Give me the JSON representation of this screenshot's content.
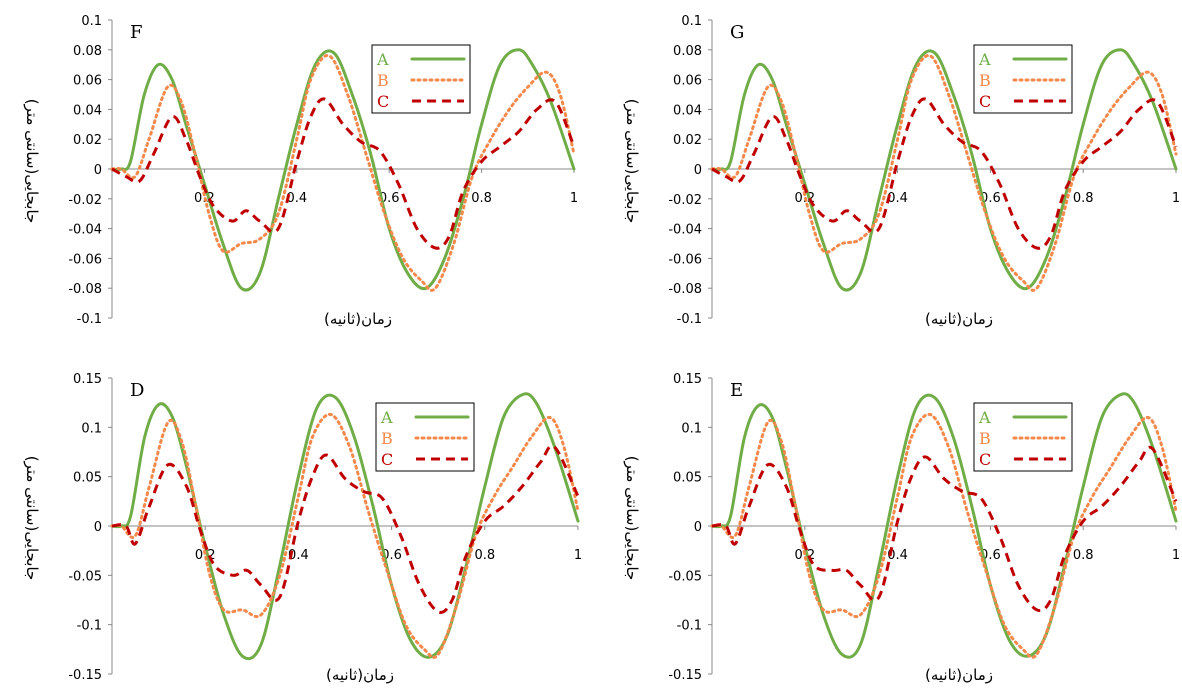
{
  "chart_data": [
    {
      "type": "line",
      "panel_label": "F",
      "xlabel": "زمان(ثانیه)",
      "ylabel": "جابجایی(سانتی متر)",
      "xlim": [
        0,
        1
      ],
      "ylim": [
        -0.1,
        0.1
      ],
      "x_ticks": [
        0.2,
        0.4,
        0.6,
        0.8,
        1
      ],
      "x_tick_labels": [
        "0.2",
        "0.4",
        "0.6",
        "0.8",
        "1"
      ],
      "y_ticks": [
        0.1,
        0.08,
        0.06,
        0.04,
        0.02,
        0,
        -0.02,
        -0.04,
        -0.06,
        -0.08,
        -0.1
      ],
      "y_tick_labels": [
        "0.1",
        "0.08",
        "0.06",
        "0.04",
        "0.02",
        "0",
        "-0.02",
        "-0.04",
        "-0.06",
        "-0.08",
        "-0.1"
      ],
      "legend_position": "top-right",
      "series": [
        {
          "name": "A",
          "color": "#70AD47",
          "style": "solid",
          "x": [
            0,
            0.02,
            0.04,
            0.07,
            0.1,
            0.13,
            0.16,
            0.2,
            0.24,
            0.28,
            0.32,
            0.36,
            0.4,
            0.44,
            0.48,
            0.52,
            0.56,
            0.6,
            0.64,
            0.68,
            0.72,
            0.76,
            0.8,
            0.84,
            0.88,
            0.91,
            0.95,
            1.0
          ],
          "y": [
            0,
            0,
            0.005,
            0.05,
            0.07,
            0.06,
            0.03,
            -0.01,
            -0.05,
            -0.08,
            -0.07,
            -0.02,
            0.03,
            0.07,
            0.078,
            0.05,
            0.01,
            -0.04,
            -0.07,
            -0.08,
            -0.06,
            -0.02,
            0.03,
            0.07,
            0.08,
            0.07,
            0.045,
            0
          ]
        },
        {
          "name": "B",
          "color": "#F4894B",
          "style": "dotted",
          "x": [
            0,
            0.02,
            0.05,
            0.08,
            0.12,
            0.15,
            0.18,
            0.21,
            0.24,
            0.28,
            0.32,
            0.36,
            0.4,
            0.43,
            0.47,
            0.51,
            0.55,
            0.59,
            0.63,
            0.67,
            0.7,
            0.74,
            0.78,
            0.82,
            0.86,
            0.9,
            0.94,
            0.97,
            1.0
          ],
          "y": [
            0,
            0,
            -0.005,
            0.02,
            0.055,
            0.045,
            0.01,
            -0.03,
            -0.055,
            -0.05,
            -0.047,
            -0.03,
            0.02,
            0.06,
            0.076,
            0.05,
            0.01,
            -0.03,
            -0.06,
            -0.075,
            -0.08,
            -0.05,
            -0.005,
            0.02,
            0.04,
            0.055,
            0.065,
            0.05,
            0.01
          ]
        },
        {
          "name": "C",
          "color": "#C00000",
          "style": "dashed",
          "x": [
            0,
            0.03,
            0.06,
            0.09,
            0.13,
            0.16,
            0.19,
            0.22,
            0.26,
            0.29,
            0.32,
            0.36,
            0.4,
            0.43,
            0.46,
            0.5,
            0.54,
            0.58,
            0.62,
            0.66,
            0.7,
            0.73,
            0.76,
            0.8,
            0.84,
            0.88,
            0.92,
            0.96,
            1.0
          ],
          "y": [
            0,
            -0.005,
            -0.008,
            0.01,
            0.035,
            0.02,
            -0.005,
            -0.025,
            -0.035,
            -0.028,
            -0.035,
            -0.04,
            0.005,
            0.035,
            0.047,
            0.03,
            0.018,
            0.012,
            -0.01,
            -0.04,
            -0.053,
            -0.045,
            -0.015,
            0.005,
            0.015,
            0.025,
            0.04,
            0.045,
            0.015
          ]
        }
      ]
    },
    {
      "type": "line",
      "panel_label": "G",
      "xlabel": "زمان(ثانیه)",
      "ylabel": "جابجایی(سانتی متر)",
      "xlim": [
        0,
        1
      ],
      "ylim": [
        -0.1,
        0.1
      ],
      "x_ticks": [
        0.2,
        0.4,
        0.6,
        0.8,
        1
      ],
      "x_tick_labels": [
        "0.2",
        "0.4",
        "0.6",
        "0.8",
        "1"
      ],
      "y_ticks": [
        0.1,
        0.08,
        0.06,
        0.04,
        0.02,
        0,
        -0.02,
        -0.04,
        -0.06,
        -0.08,
        -0.1
      ],
      "y_tick_labels": [
        "0.1",
        "0.08",
        "0.06",
        "0.04",
        "0.02",
        "0",
        "-0.02",
        "-0.04",
        "-0.06",
        "-0.08",
        "-0.1"
      ],
      "legend_position": "top-right",
      "series": [
        {
          "name": "A",
          "color": "#70AD47",
          "style": "solid",
          "x": [
            0,
            0.02,
            0.04,
            0.07,
            0.1,
            0.13,
            0.16,
            0.2,
            0.24,
            0.28,
            0.32,
            0.36,
            0.4,
            0.44,
            0.48,
            0.52,
            0.56,
            0.6,
            0.64,
            0.68,
            0.72,
            0.76,
            0.8,
            0.84,
            0.88,
            0.91,
            0.95,
            1.0
          ],
          "y": [
            0,
            0,
            0.005,
            0.05,
            0.07,
            0.06,
            0.03,
            -0.01,
            -0.05,
            -0.08,
            -0.07,
            -0.02,
            0.03,
            0.07,
            0.078,
            0.05,
            0.01,
            -0.04,
            -0.07,
            -0.08,
            -0.06,
            -0.02,
            0.03,
            0.07,
            0.08,
            0.07,
            0.045,
            0
          ]
        },
        {
          "name": "B",
          "color": "#F4894B",
          "style": "dotted",
          "x": [
            0,
            0.02,
            0.05,
            0.08,
            0.12,
            0.15,
            0.18,
            0.21,
            0.24,
            0.28,
            0.32,
            0.36,
            0.4,
            0.43,
            0.47,
            0.51,
            0.55,
            0.59,
            0.63,
            0.67,
            0.7,
            0.74,
            0.78,
            0.82,
            0.86,
            0.9,
            0.94,
            0.97,
            1.0
          ],
          "y": [
            0,
            0,
            -0.005,
            0.02,
            0.055,
            0.045,
            0.01,
            -0.03,
            -0.055,
            -0.05,
            -0.047,
            -0.03,
            0.02,
            0.06,
            0.076,
            0.05,
            0.01,
            -0.03,
            -0.06,
            -0.075,
            -0.08,
            -0.05,
            -0.005,
            0.02,
            0.04,
            0.055,
            0.065,
            0.05,
            0.01
          ]
        },
        {
          "name": "C",
          "color": "#C00000",
          "style": "dashed",
          "x": [
            0,
            0.03,
            0.06,
            0.09,
            0.13,
            0.16,
            0.19,
            0.22,
            0.26,
            0.29,
            0.32,
            0.36,
            0.4,
            0.43,
            0.46,
            0.5,
            0.54,
            0.58,
            0.62,
            0.66,
            0.7,
            0.73,
            0.76,
            0.8,
            0.84,
            0.88,
            0.92,
            0.96,
            1.0
          ],
          "y": [
            0,
            -0.005,
            -0.008,
            0.01,
            0.035,
            0.02,
            -0.005,
            -0.025,
            -0.035,
            -0.028,
            -0.035,
            -0.04,
            0.005,
            0.035,
            0.047,
            0.03,
            0.018,
            0.012,
            -0.01,
            -0.04,
            -0.053,
            -0.045,
            -0.015,
            0.005,
            0.015,
            0.025,
            0.04,
            0.045,
            0.015
          ]
        }
      ]
    },
    {
      "type": "line",
      "panel_label": "D",
      "xlabel": "زمان(ثانیه)",
      "ylabel": "جابجایی(سانتی متر)",
      "xlim": [
        0,
        1
      ],
      "ylim": [
        -0.15,
        0.15
      ],
      "x_ticks": [
        0.2,
        0.4,
        0.6,
        0.8,
        1
      ],
      "x_tick_labels": [
        "0.2",
        "0.4",
        "0.6",
        "0.8",
        "1"
      ],
      "y_ticks": [
        0.15,
        0.1,
        0.05,
        0,
        -0.05,
        -0.1,
        -0.15
      ],
      "y_tick_labels": [
        "0.15",
        "0.1",
        "0.05",
        "0",
        "-0.05",
        "-0.1",
        "-0.15"
      ],
      "legend_position": "top-right",
      "series": [
        {
          "name": "A",
          "color": "#70AD47",
          "style": "solid",
          "x": [
            0,
            0.02,
            0.04,
            0.07,
            0.1,
            0.13,
            0.16,
            0.2,
            0.24,
            0.28,
            0.32,
            0.36,
            0.4,
            0.44,
            0.48,
            0.52,
            0.56,
            0.6,
            0.64,
            0.68,
            0.72,
            0.76,
            0.8,
            0.84,
            0.88,
            0.91,
            0.95,
            1.0
          ],
          "y": [
            0,
            0,
            0.01,
            0.09,
            0.123,
            0.11,
            0.06,
            -0.02,
            -0.09,
            -0.132,
            -0.12,
            -0.04,
            0.05,
            0.12,
            0.13,
            0.09,
            0.02,
            -0.06,
            -0.115,
            -0.133,
            -0.11,
            -0.04,
            0.04,
            0.11,
            0.133,
            0.125,
            0.08,
            0.005
          ]
        },
        {
          "name": "B",
          "color": "#F4894B",
          "style": "dotted",
          "x": [
            0,
            0.02,
            0.05,
            0.08,
            0.12,
            0.15,
            0.18,
            0.21,
            0.24,
            0.28,
            0.32,
            0.36,
            0.4,
            0.43,
            0.47,
            0.51,
            0.55,
            0.59,
            0.63,
            0.67,
            0.7,
            0.74,
            0.78,
            0.82,
            0.86,
            0.9,
            0.94,
            0.97,
            1.0
          ],
          "y": [
            0,
            0,
            -0.01,
            0.04,
            0.105,
            0.085,
            0.02,
            -0.05,
            -0.085,
            -0.085,
            -0.09,
            -0.05,
            0.03,
            0.09,
            0.113,
            0.08,
            0.015,
            -0.045,
            -0.1,
            -0.125,
            -0.13,
            -0.08,
            -0.01,
            0.03,
            0.06,
            0.09,
            0.11,
            0.08,
            0.015
          ]
        },
        {
          "name": "C",
          "color": "#C00000",
          "style": "dashed",
          "x": [
            0,
            0.03,
            0.05,
            0.08,
            0.12,
            0.16,
            0.19,
            0.22,
            0.26,
            0.29,
            0.32,
            0.36,
            0.4,
            0.43,
            0.46,
            0.5,
            0.54,
            0.58,
            0.62,
            0.66,
            0.7,
            0.73,
            0.76,
            0.8,
            0.84,
            0.88,
            0.92,
            0.95,
            1.0
          ],
          "y": [
            0,
            0,
            -0.018,
            0.02,
            0.062,
            0.04,
            -0.005,
            -0.04,
            -0.05,
            -0.045,
            -0.06,
            -0.072,
            0.005,
            0.05,
            0.072,
            0.048,
            0.035,
            0.028,
            -0.01,
            -0.06,
            -0.087,
            -0.075,
            -0.03,
            0.005,
            0.02,
            0.04,
            0.065,
            0.08,
            0.03
          ]
        }
      ]
    },
    {
      "type": "line",
      "panel_label": "E",
      "xlabel": "زمان(ثانیه)",
      "ylabel": "جابجایی(سانتی متر)",
      "xlim": [
        0,
        1
      ],
      "ylim": [
        -0.15,
        0.15
      ],
      "x_ticks": [
        0.2,
        0.4,
        0.6,
        0.8,
        1
      ],
      "x_tick_labels": [
        "0.2",
        "0.4",
        "0.6",
        "0.8",
        "1"
      ],
      "y_ticks": [
        0.15,
        0.1,
        0.05,
        0,
        -0.05,
        -0.1,
        -0.15
      ],
      "y_tick_labels": [
        "0.15",
        "0.1",
        "0.05",
        "0",
        "-0.05",
        "-0.1",
        "-0.15"
      ],
      "legend_position": "top-right",
      "series": [
        {
          "name": "A",
          "color": "#70AD47",
          "style": "solid",
          "x": [
            0,
            0.02,
            0.04,
            0.07,
            0.1,
            0.13,
            0.16,
            0.2,
            0.24,
            0.28,
            0.32,
            0.36,
            0.4,
            0.44,
            0.48,
            0.52,
            0.56,
            0.6,
            0.64,
            0.68,
            0.72,
            0.76,
            0.8,
            0.84,
            0.88,
            0.91,
            0.95,
            1.0
          ],
          "y": [
            0,
            0,
            0.01,
            0.09,
            0.122,
            0.11,
            0.06,
            -0.02,
            -0.09,
            -0.13,
            -0.12,
            -0.04,
            0.05,
            0.12,
            0.13,
            0.09,
            0.02,
            -0.06,
            -0.115,
            -0.132,
            -0.11,
            -0.04,
            0.04,
            0.11,
            0.133,
            0.125,
            0.08,
            0.005
          ]
        },
        {
          "name": "B",
          "color": "#F4894B",
          "style": "dotted",
          "x": [
            0,
            0.02,
            0.05,
            0.08,
            0.12,
            0.15,
            0.18,
            0.21,
            0.24,
            0.28,
            0.32,
            0.36,
            0.4,
            0.43,
            0.47,
            0.51,
            0.55,
            0.59,
            0.63,
            0.67,
            0.7,
            0.74,
            0.78,
            0.82,
            0.86,
            0.9,
            0.94,
            0.97,
            1.0
          ],
          "y": [
            0,
            0,
            -0.01,
            0.04,
            0.105,
            0.085,
            0.02,
            -0.05,
            -0.085,
            -0.085,
            -0.09,
            -0.05,
            0.03,
            0.09,
            0.113,
            0.08,
            0.015,
            -0.045,
            -0.1,
            -0.125,
            -0.13,
            -0.08,
            -0.01,
            0.03,
            0.06,
            0.09,
            0.11,
            0.08,
            0.015
          ]
        },
        {
          "name": "C",
          "color": "#C00000",
          "style": "dashed",
          "x": [
            0,
            0.03,
            0.05,
            0.08,
            0.12,
            0.16,
            0.19,
            0.22,
            0.26,
            0.29,
            0.32,
            0.36,
            0.4,
            0.43,
            0.46,
            0.5,
            0.54,
            0.58,
            0.62,
            0.66,
            0.7,
            0.73,
            0.76,
            0.8,
            0.84,
            0.88,
            0.92,
            0.95,
            1.0
          ],
          "y": [
            0,
            0,
            -0.018,
            0.02,
            0.062,
            0.04,
            -0.005,
            -0.04,
            -0.045,
            -0.045,
            -0.06,
            -0.072,
            0.005,
            0.05,
            0.07,
            0.048,
            0.035,
            0.028,
            -0.01,
            -0.06,
            -0.085,
            -0.075,
            -0.03,
            0.005,
            0.02,
            0.04,
            0.065,
            0.078,
            0.025
          ]
        }
      ]
    }
  ]
}
